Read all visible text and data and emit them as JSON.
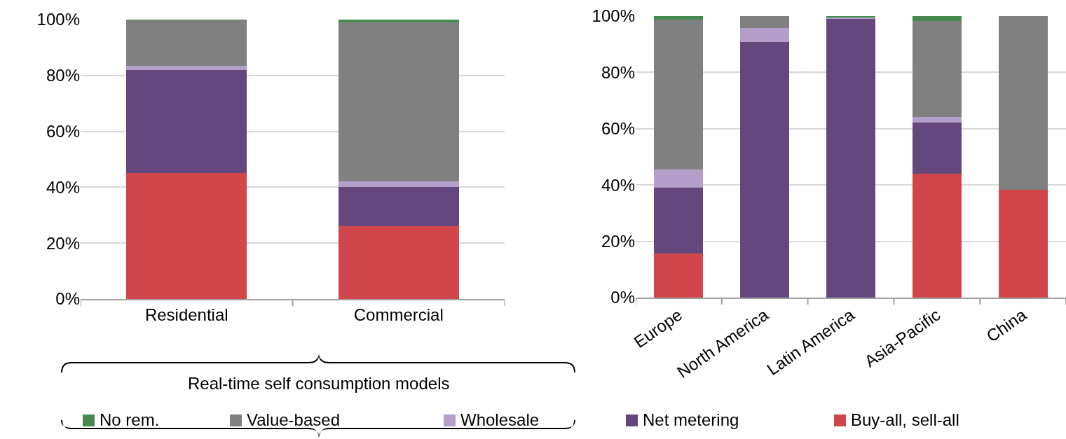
{
  "chart_data": [
    {
      "type": "bar",
      "stacked": true,
      "categories": [
        "Residential",
        "Commercial"
      ],
      "series": [
        {
          "name": "Buy-all, sell-all",
          "color": "#d1464a",
          "values": [
            45,
            26
          ]
        },
        {
          "name": "Net metering",
          "color": "#64477d",
          "values": [
            37,
            14
          ]
        },
        {
          "name": "Wholesale",
          "color": "#b49fcb",
          "values": [
            1.4,
            2
          ]
        },
        {
          "name": "Value-based",
          "color": "#808080",
          "values": [
            16.3,
            57
          ]
        },
        {
          "name": "No rem.",
          "color": "#468a51",
          "values": [
            0.3,
            1
          ]
        }
      ],
      "ylim": [
        0,
        100
      ],
      "yticks": [
        {
          "value": 0,
          "label": "0%"
        },
        {
          "value": 20,
          "label": "20%"
        },
        {
          "value": 40,
          "label": "40%"
        },
        {
          "value": 60,
          "label": "60%"
        },
        {
          "value": 80,
          "label": "80%"
        },
        {
          "value": 100,
          "label": "100%"
        }
      ],
      "grid": "y",
      "legend": "bottom",
      "annotations": [
        "Real-time self consumption models"
      ]
    },
    {
      "type": "bar",
      "stacked": true,
      "categories": [
        "Europe",
        "North America",
        "Latin America",
        "Asia-Pacific",
        "China"
      ],
      "series": [
        {
          "color": "#d1464a",
          "values": [
            15.6,
            0,
            0,
            44.1,
            38.4
          ]
        },
        {
          "color": "#64477d",
          "values": [
            23.5,
            90.8,
            99,
            18.2,
            0
          ]
        },
        {
          "color": "#b49fcb",
          "values": [
            6.5,
            5,
            0.6,
            2,
            0
          ]
        },
        {
          "color": "#808080",
          "values": [
            53.1,
            4.2,
            0,
            33.9,
            61.6
          ]
        },
        {
          "color": "#468a51",
          "values": [
            1.3,
            0,
            0.4,
            1.8,
            0
          ]
        }
      ],
      "ylim": [
        0,
        100
      ],
      "yticks": [
        {
          "value": 0,
          "label": "0%"
        },
        {
          "value": 20,
          "label": "20%"
        },
        {
          "value": 40,
          "label": "40%"
        },
        {
          "value": 60,
          "label": "60%"
        },
        {
          "value": 80,
          "label": "80%"
        },
        {
          "value": 100,
          "label": "100%"
        }
      ],
      "grid": "y",
      "legend": false
    }
  ]
}
